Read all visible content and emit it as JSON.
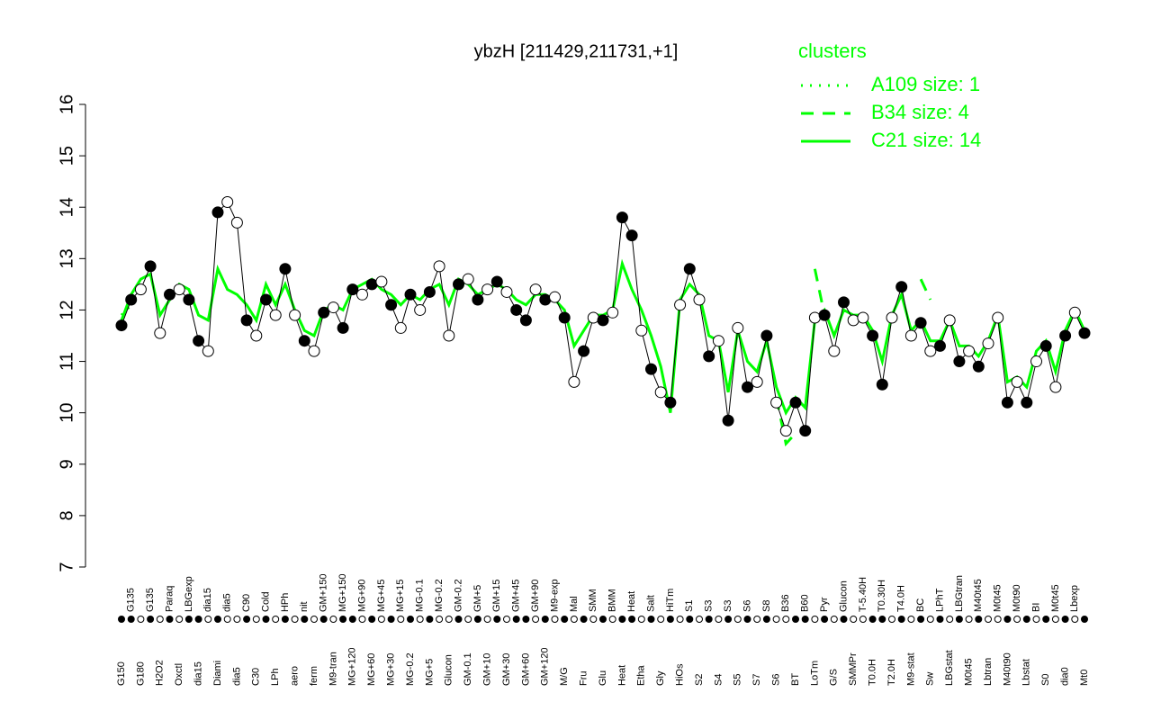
{
  "chart_data": {
    "type": "line",
    "title": "ybzH [211429,211731,+1]",
    "legend_title": "clusters",
    "ylim": [
      7,
      16
    ],
    "yticks": [
      7,
      8,
      9,
      10,
      11,
      12,
      13,
      14,
      15,
      16
    ],
    "categories": [
      "G150",
      "G135",
      "G180",
      "G135",
      "H2O2",
      "Paraq",
      "Oxctl",
      "LBGexp",
      "dia15",
      "dia15",
      "Diami",
      "dia5",
      "dia5",
      "C90",
      "C30",
      "Cold",
      "LPh",
      "HPh",
      "aero",
      "nit",
      "ferm",
      "GM+150",
      "M9-tran",
      "MG+150",
      "MG+120",
      "MG+90",
      "MG+60",
      "MG+45",
      "MG+30",
      "MG+15",
      "MG-0.2",
      "MG-0.1",
      "MG+5",
      "MG-0.2",
      "Glucon",
      "GM-0.2",
      "GM-0.1",
      "GM+5",
      "GM+10",
      "GM+15",
      "GM+30",
      "GM+45",
      "GM+60",
      "GM+90",
      "GM+120",
      "M9-exp",
      "M/G",
      "Mal",
      "Fru",
      "SMM",
      "Glu",
      "BMM",
      "Heat",
      "Heat",
      "Etha",
      "Salt",
      "Gly",
      "HiTm",
      "HiOs",
      "S1",
      "S2",
      "S3",
      "S4",
      "S3",
      "S5",
      "S6",
      "S7",
      "S8",
      "S6",
      "B36",
      "BT",
      "B60",
      "LoTm",
      "Pyr",
      "G/S",
      "Glucon",
      "SMMPr",
      "T-5.40H",
      "T0.0H",
      "T0.30H",
      "T2.0H",
      "T4.0H",
      "M9-stat",
      "BC",
      "Sw",
      "LPhT",
      "LBGstat",
      "LBGtran",
      "M0t45",
      "M40t45",
      "Lbtran",
      "M0t45",
      "M40t90",
      "M0t90",
      "Lbstat",
      "BI",
      "S0",
      "M0t45",
      "dia0",
      "Lbexp",
      "Mt0"
    ],
    "points": {
      "color": "#000000",
      "values": [
        11.7,
        12.2,
        12.4,
        12.85,
        11.55,
        12.3,
        12.4,
        12.2,
        11.4,
        11.2,
        13.9,
        14.1,
        13.7,
        11.8,
        11.5,
        12.2,
        11.9,
        12.8,
        11.9,
        11.4,
        11.2,
        11.95,
        12.05,
        11.65,
        12.4,
        12.3,
        12.5,
        12.55,
        12.1,
        11.65,
        12.3,
        12.0,
        12.35,
        12.85,
        11.5,
        12.5,
        12.6,
        12.2,
        12.4,
        12.55,
        12.35,
        12.0,
        11.8,
        12.4,
        12.2,
        12.25,
        11.85,
        10.6,
        11.2,
        11.85,
        11.8,
        11.95,
        13.8,
        13.45,
        11.6,
        10.85,
        10.4,
        10.2,
        12.1,
        12.8,
        12.2,
        11.1,
        11.4,
        9.85,
        11.65,
        10.5,
        10.6,
        11.5,
        10.2,
        9.65,
        10.2,
        9.65,
        11.85,
        11.9,
        11.2,
        12.15,
        11.8,
        11.85,
        11.5,
        10.55,
        11.85,
        12.45,
        11.5,
        11.75,
        11.2,
        11.3,
        11.8,
        11.0,
        11.2,
        10.9,
        11.35,
        11.85,
        10.2,
        10.6,
        10.2,
        11.0,
        11.3,
        10.5,
        11.5,
        11.95,
        11.55
      ],
      "filled": [
        true,
        true,
        false,
        true,
        false,
        true,
        false,
        true,
        true,
        false,
        true,
        false,
        false,
        true,
        false,
        true,
        false,
        true,
        false,
        true,
        false,
        true,
        false,
        true,
        true,
        false,
        true,
        false,
        true,
        false,
        true,
        false,
        true,
        false,
        false,
        true,
        false,
        true,
        false,
        true,
        false,
        true,
        true,
        false,
        true,
        false,
        true,
        false,
        true,
        false,
        true,
        false,
        true,
        true,
        false,
        true,
        false,
        true,
        false,
        true,
        false,
        true,
        false,
        true,
        false,
        true,
        false,
        true,
        false,
        false,
        true,
        true,
        false,
        true,
        false,
        true,
        false,
        false,
        true,
        true,
        false,
        true,
        false,
        true,
        false,
        true,
        false,
        true,
        false,
        true,
        false,
        false,
        true,
        false,
        true,
        false,
        true,
        false,
        true,
        false,
        true
      ]
    },
    "series": [
      {
        "name": "A109 size: 1",
        "color": "#00ff00",
        "style": "dotted",
        "values": [
          11.9,
          12.1,
          null,
          null,
          null,
          null,
          null,
          null,
          null,
          null,
          null,
          null,
          null,
          null,
          null,
          null,
          null,
          null,
          null,
          null,
          null,
          null,
          null,
          null,
          null,
          null,
          null,
          null,
          null,
          null,
          null,
          null,
          null,
          null,
          null,
          null,
          null,
          null,
          null,
          null,
          null,
          null,
          null,
          null,
          null,
          null,
          null,
          null,
          null,
          null,
          null,
          null,
          null,
          null,
          null,
          null,
          null,
          null,
          null,
          null,
          null,
          null,
          null,
          null,
          null,
          null,
          null,
          null,
          null,
          null,
          null,
          null,
          null,
          null,
          null,
          null,
          null,
          null,
          null,
          null,
          null,
          null,
          null,
          null,
          null,
          null,
          null,
          null,
          null,
          null,
          null,
          null,
          null,
          null,
          null,
          null,
          null,
          null,
          null,
          null,
          null
        ]
      },
      {
        "name": "B34 size: 4",
        "color": "#00ff00",
        "style": "dashed",
        "values": [
          null,
          null,
          null,
          null,
          null,
          null,
          null,
          null,
          null,
          null,
          null,
          null,
          null,
          null,
          null,
          null,
          null,
          null,
          null,
          null,
          null,
          null,
          null,
          null,
          null,
          null,
          null,
          null,
          null,
          null,
          null,
          null,
          null,
          null,
          null,
          null,
          null,
          null,
          null,
          null,
          null,
          null,
          null,
          null,
          null,
          null,
          null,
          null,
          null,
          null,
          null,
          null,
          null,
          null,
          null,
          null,
          null,
          null,
          null,
          null,
          null,
          null,
          null,
          null,
          null,
          null,
          null,
          null,
          10.3,
          9.4,
          9.6,
          null,
          12.8,
          11.9,
          null,
          null,
          null,
          null,
          null,
          null,
          null,
          null,
          null,
          12.6,
          12.2,
          null,
          null,
          null,
          null,
          null,
          null,
          null,
          null,
          null,
          null,
          null,
          null,
          null,
          null,
          null,
          null
        ]
      },
      {
        "name": "C21 size: 14",
        "color": "#00ff00",
        "style": "solid",
        "values": [
          11.8,
          12.3,
          12.6,
          12.7,
          11.9,
          12.2,
          12.5,
          12.4,
          11.9,
          11.8,
          12.8,
          12.4,
          12.3,
          12.1,
          11.8,
          12.5,
          12.1,
          12.5,
          12.0,
          11.6,
          11.5,
          12.0,
          12.1,
          12.0,
          12.4,
          12.5,
          12.6,
          12.4,
          12.3,
          12.1,
          12.3,
          12.2,
          12.4,
          12.5,
          12.1,
          12.6,
          12.5,
          12.3,
          12.4,
          12.5,
          12.4,
          12.2,
          12.1,
          12.3,
          12.3,
          12.2,
          12.0,
          11.3,
          11.6,
          11.9,
          11.9,
          12.0,
          12.9,
          12.4,
          12.0,
          11.5,
          10.9,
          10.0,
          12.2,
          12.5,
          12.3,
          11.5,
          11.4,
          10.4,
          11.6,
          11.0,
          10.8,
          11.4,
          10.5,
          10.0,
          10.3,
          10.1,
          11.8,
          12.0,
          11.5,
          12.0,
          11.9,
          11.9,
          11.6,
          11.0,
          11.9,
          12.3,
          11.6,
          11.8,
          11.4,
          11.4,
          11.8,
          11.3,
          11.3,
          11.1,
          11.4,
          11.9,
          10.6,
          10.7,
          10.5,
          11.2,
          11.4,
          10.8,
          11.6,
          12.0,
          11.6
        ]
      }
    ]
  }
}
